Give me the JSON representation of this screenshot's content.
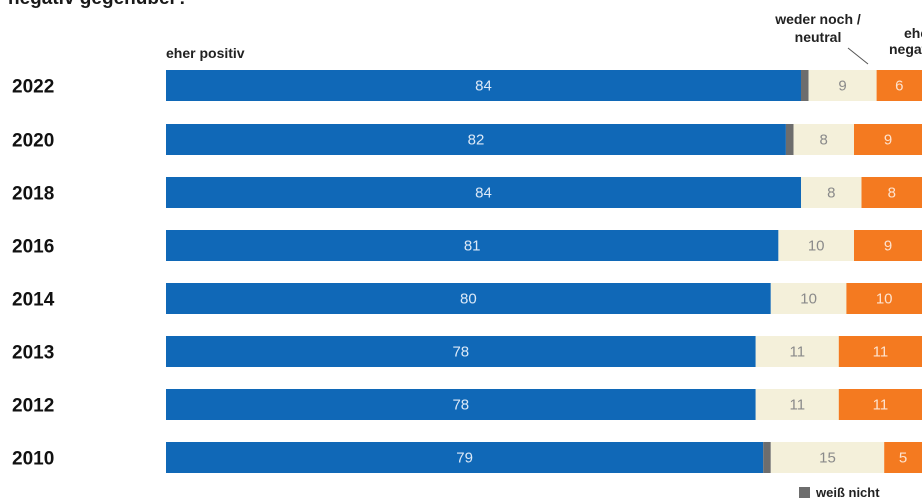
{
  "title_fragment": "negativ gegenüber?",
  "chart_data": {
    "type": "bar",
    "orientation": "horizontal",
    "stacked": true,
    "normalized_percent": true,
    "categories": [
      "2022",
      "2020",
      "2018",
      "2016",
      "2014",
      "2013",
      "2012",
      "2010"
    ],
    "series": [
      {
        "key": "positive",
        "name": "eher positiv",
        "color": "#1068b7",
        "values": [
          84,
          82,
          84,
          81,
          80,
          78,
          78,
          79
        ]
      },
      {
        "key": "unknown",
        "name": "weiß nicht",
        "color": "#6d6d6d",
        "values": [
          1,
          1,
          0,
          0,
          0,
          0,
          0,
          1
        ]
      },
      {
        "key": "neutral",
        "name": "weder noch / neutral",
        "color": "#f4f0da",
        "values": [
          9,
          8,
          8,
          10,
          10,
          11,
          11,
          15
        ]
      },
      {
        "key": "negative",
        "name": "eher negativ",
        "color": "#f47a20",
        "values": [
          6,
          9,
          8,
          9,
          10,
          11,
          11,
          5
        ]
      }
    ],
    "labeled_series": [
      "positive",
      "neutral",
      "negative"
    ],
    "column_headers": {
      "positive": "eher positiv",
      "neutral_line1": "weder noch /",
      "neutral_line2": "neutral",
      "negative_line1": "eher",
      "negative_line2": "negativ"
    },
    "legend_note": "weiß nicht"
  }
}
